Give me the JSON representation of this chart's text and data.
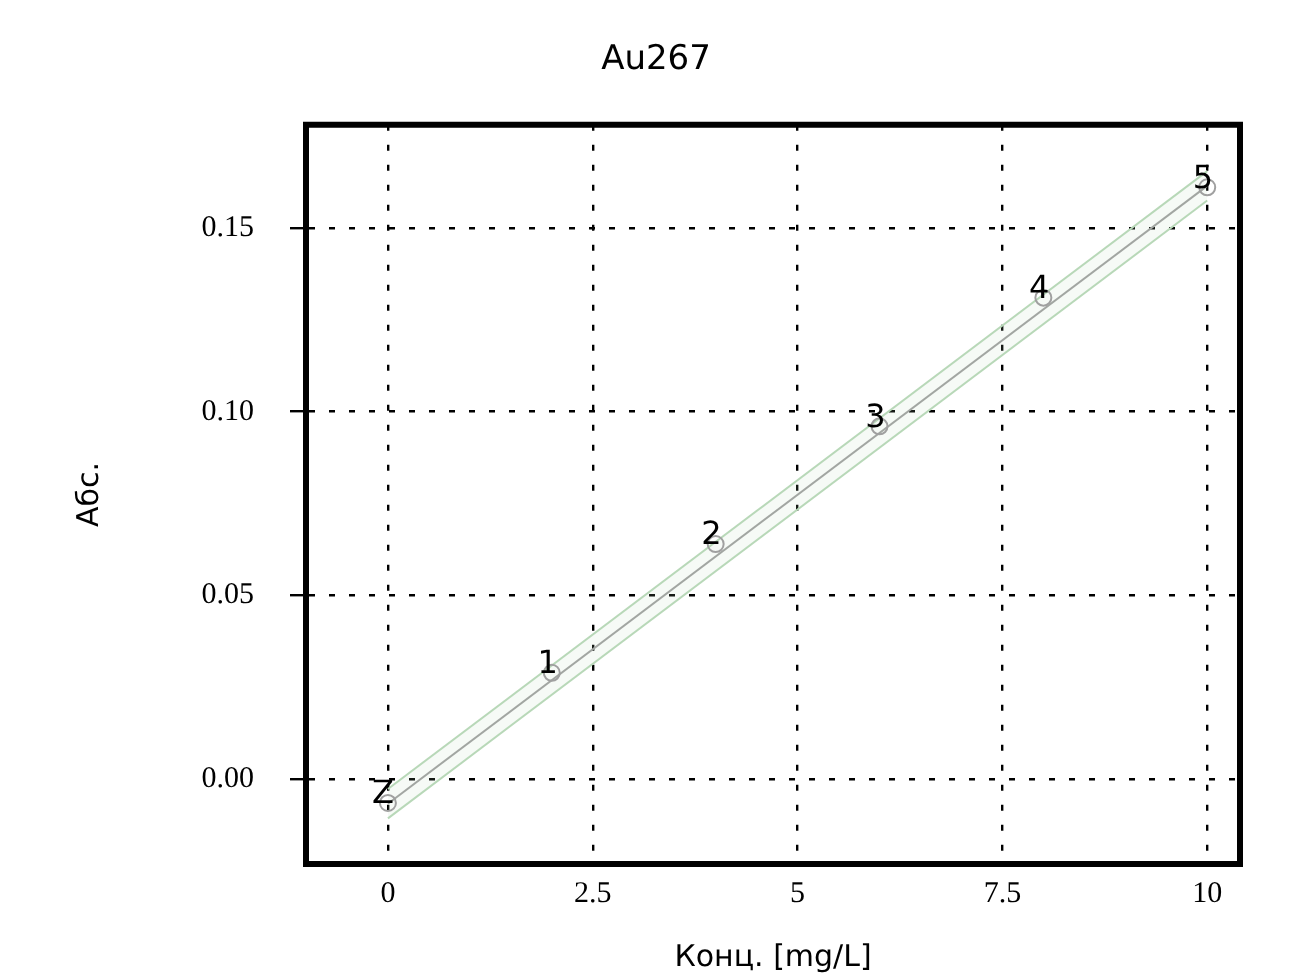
{
  "chart_data": {
    "type": "scatter",
    "title": "Au267",
    "xlabel": "Конц. [mg/L]",
    "ylabel": "Абс.",
    "xlim": [
      -1,
      10.4
    ],
    "ylim": [
      -0.023,
      0.178
    ],
    "xticks": [
      0,
      2.5,
      5,
      7.5,
      10
    ],
    "yticks": [
      {
        "value": 0,
        "label": "0.00"
      },
      {
        "value": 0.05,
        "label": "0.05"
      },
      {
        "value": 0.1,
        "label": "0.10"
      },
      {
        "value": 0.15,
        "label": "0.15"
      }
    ],
    "grid": true,
    "legend": false,
    "series": [
      {
        "x": [
          0,
          2,
          4,
          6,
          8,
          10
        ],
        "values": [
          -0.0064,
          0.029,
          0.064,
          0.096,
          0.131,
          0.161
        ],
        "color": "#a0a0a0",
        "marker": "circle"
      },
      {
        "type": "line",
        "x": [
          0,
          10
        ],
        "values": [
          -0.0066,
          0.1614
        ],
        "lower": [
          -0.0106,
          0.1574
        ],
        "upper": [
          -0.0026,
          0.1654
        ],
        "color": "#a0a0a0"
      }
    ],
    "annotations": [
      {
        "text": "Z",
        "x": 0,
        "y": -0.0064
      },
      {
        "text": "1",
        "x": 2,
        "y": 0.029
      },
      {
        "text": "2",
        "x": 4,
        "y": 0.064
      },
      {
        "text": "3",
        "x": 6,
        "y": 0.096
      },
      {
        "text": "4",
        "x": 8,
        "y": 0.131
      },
      {
        "text": "5",
        "x": 10,
        "y": 0.161
      }
    ]
  }
}
